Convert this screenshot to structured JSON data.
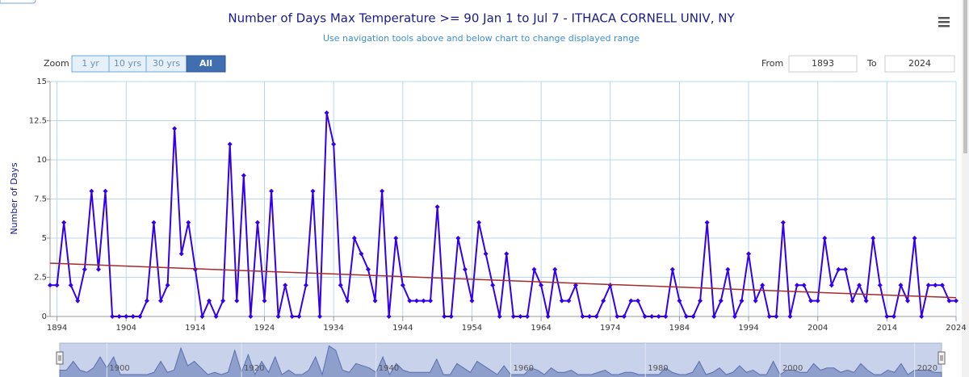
{
  "chart_data": {
    "type": "line",
    "title": "Number of Days Max Temperature >= 90 Jan 1 to Jul 7 - ITHACA CORNELL UNIV, NY",
    "subtitle": "Use navigation tools above and below chart to change displayed range",
    "y_label": "Number of Days",
    "zoom": {
      "label": "Zoom",
      "buttons": [
        "1 yr",
        "10 yrs",
        "30 yrs",
        "All"
      ],
      "active": 3
    },
    "range": {
      "from_label": "From",
      "from": "1893",
      "to_label": "To",
      "to": "2024"
    },
    "x": [
      1893,
      1894,
      1895,
      1896,
      1897,
      1898,
      1899,
      1900,
      1901,
      1902,
      1903,
      1904,
      1905,
      1906,
      1907,
      1908,
      1909,
      1910,
      1911,
      1912,
      1913,
      1914,
      1915,
      1916,
      1917,
      1918,
      1919,
      1920,
      1921,
      1922,
      1923,
      1924,
      1925,
      1926,
      1927,
      1928,
      1929,
      1930,
      1931,
      1932,
      1933,
      1934,
      1935,
      1936,
      1937,
      1938,
      1939,
      1940,
      1941,
      1942,
      1943,
      1944,
      1945,
      1946,
      1947,
      1948,
      1949,
      1950,
      1951,
      1952,
      1953,
      1954,
      1955,
      1956,
      1957,
      1958,
      1959,
      1960,
      1961,
      1962,
      1963,
      1964,
      1965,
      1966,
      1967,
      1968,
      1969,
      1970,
      1971,
      1972,
      1973,
      1974,
      1975,
      1976,
      1977,
      1978,
      1979,
      1980,
      1981,
      1982,
      1983,
      1984,
      1985,
      1986,
      1987,
      1988,
      1989,
      1990,
      1991,
      1992,
      1993,
      1994,
      1995,
      1996,
      1997,
      1998,
      1999,
      2000,
      2001,
      2002,
      2003,
      2004,
      2005,
      2006,
      2007,
      2008,
      2009,
      2010,
      2011,
      2012,
      2013,
      2014,
      2015,
      2016,
      2017,
      2018,
      2019,
      2020,
      2021,
      2022,
      2023,
      2024
    ],
    "series": [
      {
        "name": "Number of Days",
        "color": "#3300ee",
        "values": [
          2,
          2,
          6,
          2,
          1,
          3,
          8,
          3,
          8,
          0,
          0,
          0,
          0,
          0,
          1,
          6,
          1,
          2,
          12,
          4,
          6,
          3,
          0,
          1,
          0,
          1,
          11,
          1,
          9,
          0,
          6,
          1,
          8,
          0,
          2,
          0,
          0,
          2,
          8,
          0,
          13,
          11,
          2,
          1,
          5,
          4,
          3,
          1,
          8,
          0,
          5,
          2,
          1,
          1,
          1,
          1,
          7,
          0,
          0,
          5,
          3,
          1,
          6,
          4,
          2,
          0,
          4,
          0,
          0,
          0,
          3,
          2,
          0,
          3,
          1,
          1,
          2,
          0,
          0,
          0,
          1,
          2,
          0,
          0,
          1,
          1,
          0,
          0,
          0,
          0,
          3,
          1,
          0,
          0,
          1,
          6,
          0,
          1,
          3,
          0,
          1,
          4,
          1,
          2,
          0,
          0,
          6,
          0,
          2,
          2,
          1,
          1,
          5,
          2,
          3,
          3,
          1,
          2,
          1,
          5,
          2,
          0,
          0,
          2,
          1,
          5,
          0,
          2,
          2,
          2,
          1,
          1
        ]
      }
    ],
    "trend": {
      "x": [
        1893,
        2024
      ],
      "values": [
        3.4,
        1.2
      ],
      "color": "#a52a2a"
    },
    "xlim": [
      1893,
      2024
    ],
    "xticks": [
      1894,
      1904,
      1914,
      1924,
      1934,
      1944,
      1954,
      1964,
      1974,
      1984,
      1994,
      2004,
      2014,
      2024
    ],
    "ylim": [
      0,
      15
    ],
    "yticks": [
      0,
      2.5,
      5,
      7.5,
      10,
      12.5,
      15
    ],
    "grid": true,
    "navigator_ticks": [
      1900,
      1920,
      1940,
      1960,
      1980,
      2000,
      2020
    ]
  }
}
